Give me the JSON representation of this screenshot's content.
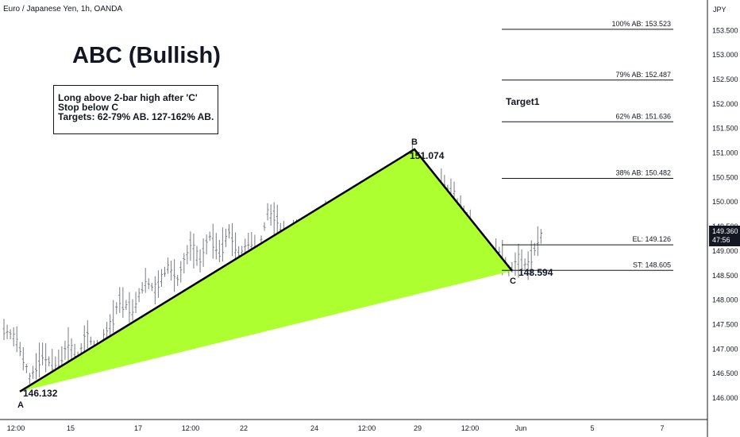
{
  "header": {
    "symbol_title": "Euro / Japanese Yen, 1h, OANDA",
    "currency": "JPY"
  },
  "pattern_title": "ABC (Bullish)",
  "notes": [
    "Long above 2-bar high after 'C'",
    "Stop below C",
    "Targets:  62-79% AB. 127-162% AB."
  ],
  "target_label": "Target1",
  "price_tag": {
    "price": "149.360",
    "countdown": "47:56"
  },
  "colors": {
    "fill": "#adff2f",
    "line": "#000000",
    "candle": "#787b86",
    "bg": "#ffffff"
  },
  "chart_data": {
    "type": "candlestick",
    "title": "ABC (Bullish)",
    "x_ticks": [
      "12:00",
      "15",
      "17",
      "12:00",
      "22",
      "24",
      "12:00",
      "29",
      "12:00",
      "Jun",
      "5",
      "7"
    ],
    "y_ticks": [
      146.0,
      146.5,
      147.0,
      147.5,
      148.0,
      148.5,
      149.0,
      149.5,
      150.0,
      150.5,
      151.0,
      151.5,
      152.0,
      152.5,
      153.0,
      153.5
    ],
    "ylim": [
      145.6,
      153.9
    ],
    "points": [
      {
        "label": "A",
        "value": "146.132",
        "price": 146.132
      },
      {
        "label": "B",
        "value": "151.074",
        "price": 151.074
      },
      {
        "label": "C",
        "value": "148.594",
        "price": 148.594
      }
    ],
    "levels": [
      {
        "label": "100% AB: 153.523",
        "price": 153.523
      },
      {
        "label": "79% AB: 152.487",
        "price": 152.487
      },
      {
        "label": "62% AB: 151.636",
        "price": 151.636
      },
      {
        "label": "38% AB: 150.482",
        "price": 150.482
      },
      {
        "label": "EL: 149.126",
        "price": 149.126
      },
      {
        "label": "ST: 148.605",
        "price": 148.605
      }
    ],
    "price_path": [
      [
        0,
        147.4
      ],
      [
        4,
        147.2
      ],
      [
        8,
        146.4
      ],
      [
        12,
        146.9
      ],
      [
        16,
        146.6
      ],
      [
        20,
        147.1
      ],
      [
        23,
        146.8
      ],
      [
        26,
        147.3
      ],
      [
        29,
        146.9
      ],
      [
        33,
        147.5
      ],
      [
        36,
        148.0
      ],
      [
        40,
        147.8
      ],
      [
        44,
        148.4
      ],
      [
        47,
        148.2
      ],
      [
        51,
        148.7
      ],
      [
        54,
        148.4
      ],
      [
        58,
        149.1
      ],
      [
        61,
        148.8
      ],
      [
        64,
        149.3
      ],
      [
        67,
        149.0
      ],
      [
        70,
        149.4
      ],
      [
        73,
        148.9
      ],
      [
        76,
        149.2
      ],
      [
        79,
        148.9
      ],
      [
        82,
        149.8
      ],
      [
        85,
        149.6
      ],
      [
        88,
        149.2
      ],
      [
        91,
        149.4
      ],
      [
        94,
        148.9
      ],
      [
        97,
        149.4
      ],
      [
        100,
        149.7
      ],
      [
        103,
        149.1
      ],
      [
        106,
        149.4
      ],
      [
        109,
        149.2
      ],
      [
        112,
        149.7
      ],
      [
        115,
        149.5
      ],
      [
        118,
        150.1
      ],
      [
        121,
        149.9
      ],
      [
        124,
        150.4
      ],
      [
        127,
        150.9
      ],
      [
        130,
        150.7
      ],
      [
        133,
        150.1
      ],
      [
        136,
        150.4
      ],
      [
        139,
        150.2
      ],
      [
        142,
        149.8
      ],
      [
        145,
        149.6
      ],
      [
        148,
        149.3
      ],
      [
        151,
        148.8
      ],
      [
        154,
        149.0
      ],
      [
        157,
        148.6
      ],
      [
        160,
        148.8
      ],
      [
        163,
        148.7
      ],
      [
        166,
        149.2
      ],
      [
        168,
        149.4
      ]
    ]
  },
  "x_axis_labels": [
    "12:00",
    "15",
    "17",
    "12:00",
    "22",
    "24",
    "12:00",
    "29",
    "12:00",
    "Jun",
    "5",
    "7"
  ],
  "y_axis_labels": [
    "153.500",
    "153.000",
    "152.500",
    "152.000",
    "151.500",
    "151.000",
    "150.500",
    "150.000",
    "149.500",
    "149.000",
    "148.500",
    "148.000",
    "147.500",
    "147.000",
    "146.500",
    "146.000"
  ]
}
